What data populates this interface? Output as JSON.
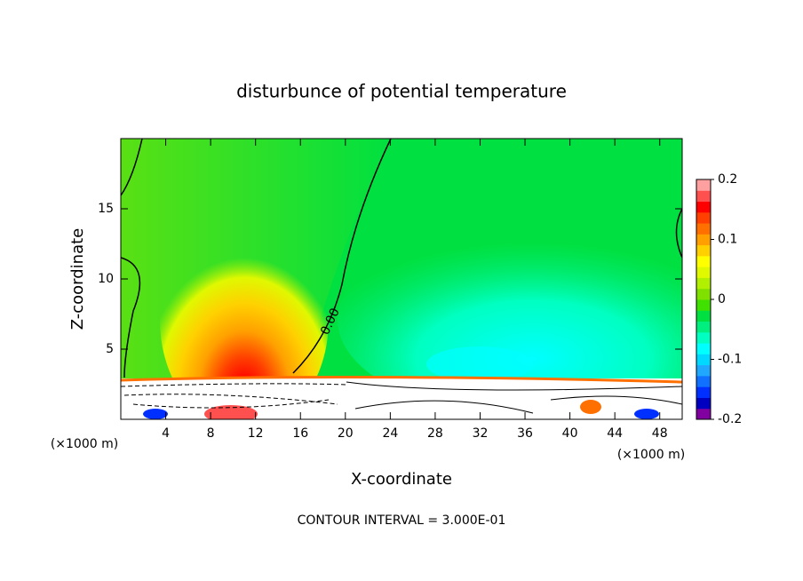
{
  "chart_data": {
    "type": "contour",
    "title": "disturbunce of potential temperature",
    "x_label": "X-coordinate",
    "y_label": "Z-coordinate",
    "x_unit": "(×1000 m)",
    "footer": "CONTOUR INTERVAL = 3.000E-01",
    "contour_label": "0.00",
    "xlim": [
      0,
      50
    ],
    "xticks": [
      4,
      8,
      12,
      16,
      20,
      24,
      28,
      32,
      36,
      40,
      44,
      48
    ],
    "ylim": [
      0,
      20
    ],
    "yticks": [
      5,
      10,
      15
    ],
    "colorbar": {
      "range": [
        -0.2,
        0.2
      ],
      "ticks": [
        0.2,
        0.1,
        0,
        -0.1,
        -0.2
      ],
      "colors": [
        "#8000a0",
        "#0000c0",
        "#0030ff",
        "#1070ff",
        "#20a8ff",
        "#00d8ff",
        "#00ffff",
        "#00ffc0",
        "#00f080",
        "#00e040",
        "#40e000",
        "#80e000",
        "#b0f000",
        "#e0f800",
        "#ffff00",
        "#ffd000",
        "#ffa000",
        "#ff7000",
        "#ff4000",
        "#ff0000",
        "#ff5050",
        "#ffa0a0"
      ]
    }
  }
}
